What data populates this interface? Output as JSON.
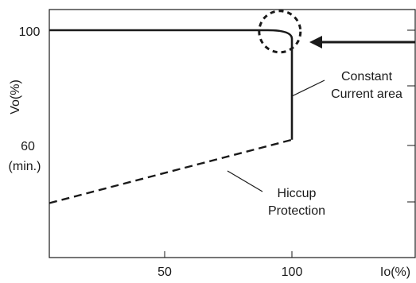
{
  "chart_data": {
    "type": "line",
    "xlabel": "Io(%)",
    "ylabel": "Vo(%)",
    "xlim": [
      0,
      120
    ],
    "ylim": [
      40,
      110
    ],
    "x_ticks": [
      {
        "value": 50,
        "label": "50"
      },
      {
        "value": 100,
        "label": "100"
      }
    ],
    "y_ticks": [
      {
        "value": 100,
        "label": "100"
      },
      {
        "value": 60,
        "label": "60",
        "sublabel": "(min.)"
      }
    ],
    "right_axis_ticks": [
      100,
      80,
      60,
      40
    ],
    "series": [
      {
        "style": "solid",
        "x": [
          0,
          90,
          94,
          100,
          100
        ],
        "y": [
          100,
          100,
          99.5,
          97,
          62
        ]
      },
      {
        "style": "dashed",
        "x": [
          0,
          100
        ],
        "y": [
          40,
          62
        ]
      }
    ],
    "annotations": [
      {
        "text_line1": "Constant",
        "text_line2": "Current area"
      },
      {
        "text_line1": "Hiccup",
        "text_line2": "Protection"
      }
    ],
    "highlight": {
      "type": "dashed-circle",
      "x": 95,
      "y": 99.5
    }
  }
}
